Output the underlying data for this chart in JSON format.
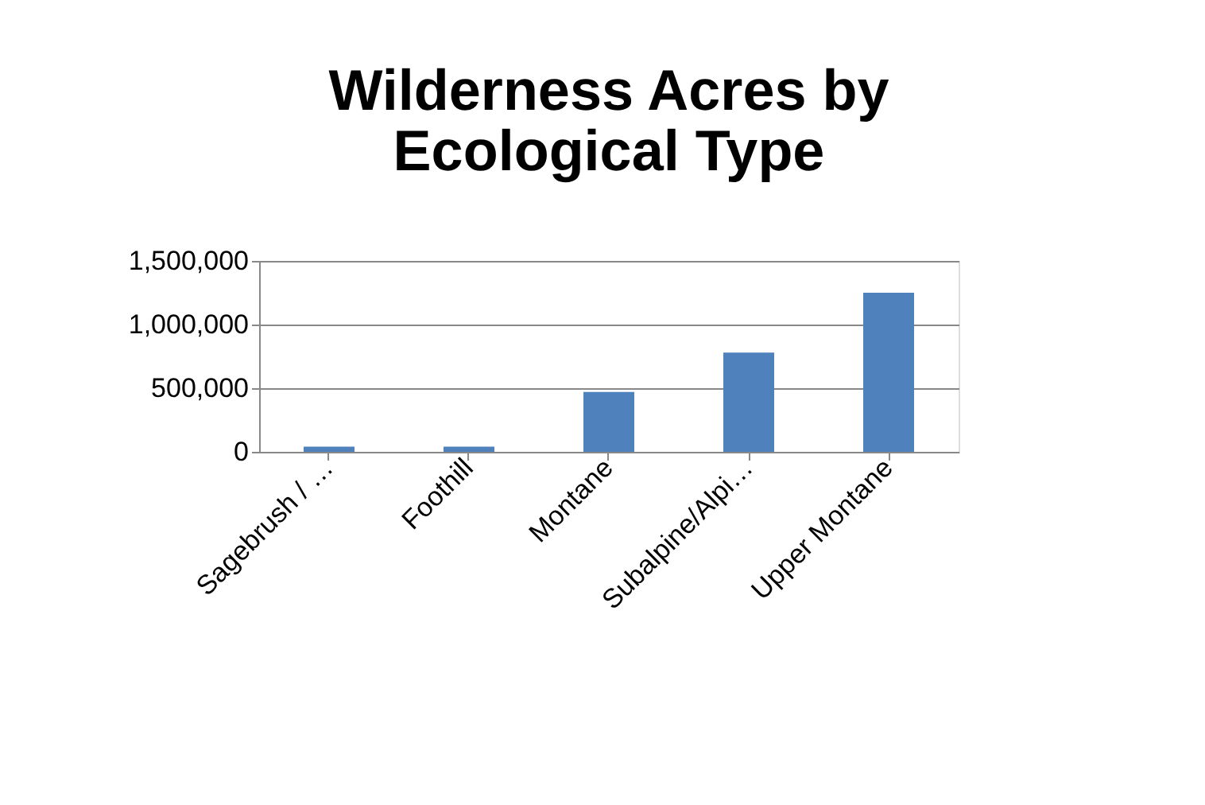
{
  "chart_data": {
    "type": "bar",
    "title": "Wilderness Acres by Ecological Type",
    "categories": [
      "Sagebrush / …",
      "Foothill",
      "Montane",
      "Subalpine/Alpi…",
      "Upper Montane"
    ],
    "values": [
      40000,
      40000,
      470000,
      780000,
      1250000
    ],
    "color": "#4f81bd",
    "ylim": [
      0,
      1500000
    ],
    "yticks": [
      0,
      {
        "value": 500000,
        "label": "500,000"
      },
      {
        "value": 1000000,
        "label": "1,000,000"
      },
      {
        "value": 1500000,
        "label": "1,500,000"
      }
    ],
    "grid": "y"
  }
}
